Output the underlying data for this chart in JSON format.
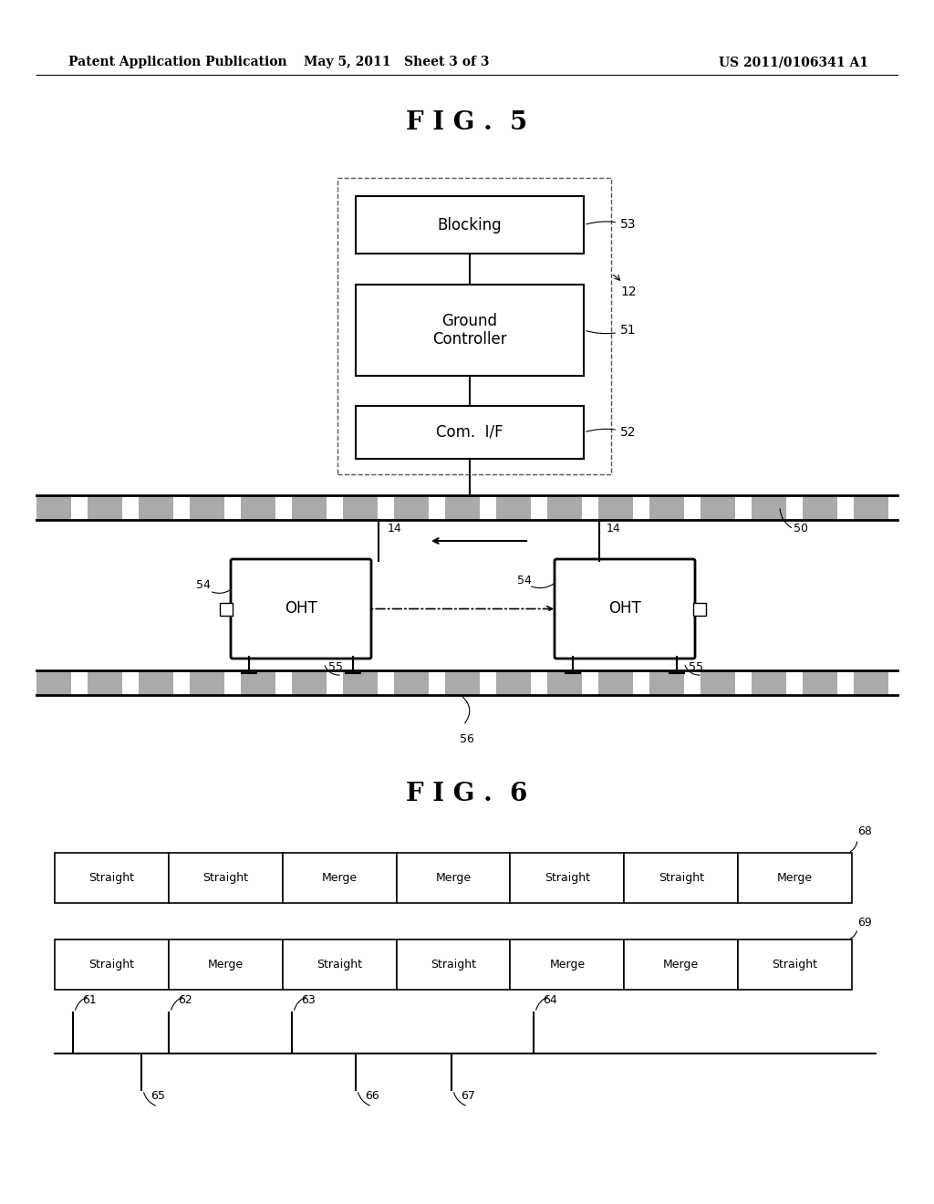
{
  "bg_color": "#ffffff",
  "header_left": "Patent Application Publication",
  "header_mid": "May 5, 2011   Sheet 3 of 3",
  "header_right": "US 2011/0106341 A1",
  "fig5_title": "F I G .  5",
  "fig6_title": "F I G .  6",
  "fig5": {
    "blocking_label": "Blocking",
    "gc_label": "Ground\nController",
    "comif_label": "Com.  I/F",
    "oht_label": "OHT"
  },
  "fig6": {
    "row1_cells": [
      "Straight",
      "Straight",
      "Merge",
      "Merge",
      "Straight",
      "Straight",
      "Merge"
    ],
    "row2_cells": [
      "Straight",
      "Merge",
      "Straight",
      "Straight",
      "Merge",
      "Merge",
      "Straight"
    ]
  }
}
